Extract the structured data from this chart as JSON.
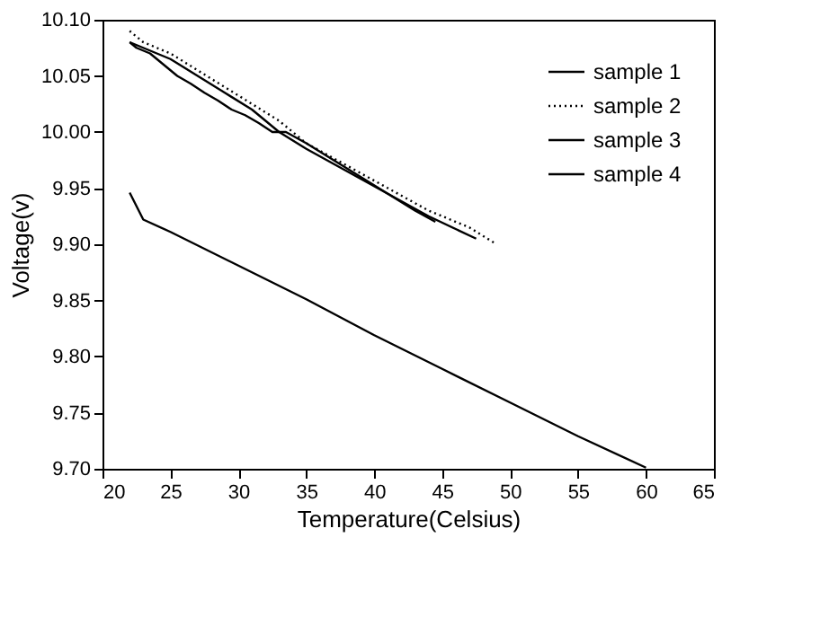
{
  "chart_data": {
    "type": "line",
    "xlabel": "Temperature(Celsius)",
    "ylabel": "Voltage(v)",
    "xlim": [
      20,
      65
    ],
    "xticks": [
      20,
      25,
      30,
      35,
      40,
      45,
      50,
      55,
      60,
      65
    ],
    "ylim": [
      9.7,
      10.1
    ],
    "yticks": [
      {
        "value": 9.7,
        "label": "9.70"
      },
      {
        "value": 9.75,
        "label": "9.75"
      },
      {
        "value": 9.8,
        "label": "9.80"
      },
      {
        "value": 9.85,
        "label": "9.85"
      },
      {
        "value": 9.9,
        "label": "9.90"
      },
      {
        "value": 9.95,
        "label": "9.95"
      },
      {
        "value": 10.0,
        "label": "10.00"
      },
      {
        "value": 10.05,
        "label": "10.05"
      },
      {
        "value": 10.1,
        "label": "10.10"
      }
    ],
    "grid": false,
    "legend": "top right",
    "marker": "none",
    "series": [
      {
        "name": "sample 1",
        "color": "#000000",
        "line_style": "solid",
        "x": [
          22,
          23,
          25,
          30,
          35,
          40,
          45,
          50,
          55,
          60
        ],
        "values": [
          9.946,
          9.922,
          9.911,
          9.881,
          9.851,
          9.819,
          9.789,
          9.759,
          9.729,
          9.701
        ]
      },
      {
        "name": "sample 2",
        "color": "#000000",
        "line_style": "dotted",
        "x": [
          22,
          23,
          25,
          27,
          29,
          31,
          33,
          35,
          38,
          41,
          44,
          47,
          49
        ],
        "values": [
          10.09,
          10.08,
          10.07,
          10.055,
          10.04,
          10.025,
          10.01,
          9.99,
          9.97,
          9.95,
          9.93,
          9.915,
          9.9
        ]
      },
      {
        "name": "sample 3",
        "color": "#000000",
        "line_style": "solid",
        "x": [
          22,
          23,
          25,
          27,
          29,
          31,
          33,
          35,
          38,
          41,
          44,
          47.5
        ],
        "values": [
          10.08,
          10.075,
          10.065,
          10.05,
          10.035,
          10.02,
          10.0,
          9.985,
          9.965,
          9.945,
          9.925,
          9.905
        ]
      },
      {
        "name": "sample 4",
        "color": "#000000",
        "line_style": "solid",
        "x": [
          22,
          22.5,
          23.5,
          24.5,
          25.5,
          26.5,
          27.5,
          28.5,
          29.5,
          30.5,
          31.5,
          32.5,
          33.5,
          35,
          37,
          39,
          41,
          43,
          44.5
        ],
        "values": [
          10.08,
          10.075,
          10.07,
          10.06,
          10.05,
          10.043,
          10.035,
          10.028,
          10.02,
          10.015,
          10.008,
          10.0,
          10.0,
          9.99,
          9.975,
          9.96,
          9.945,
          9.93,
          9.92
        ]
      }
    ]
  }
}
